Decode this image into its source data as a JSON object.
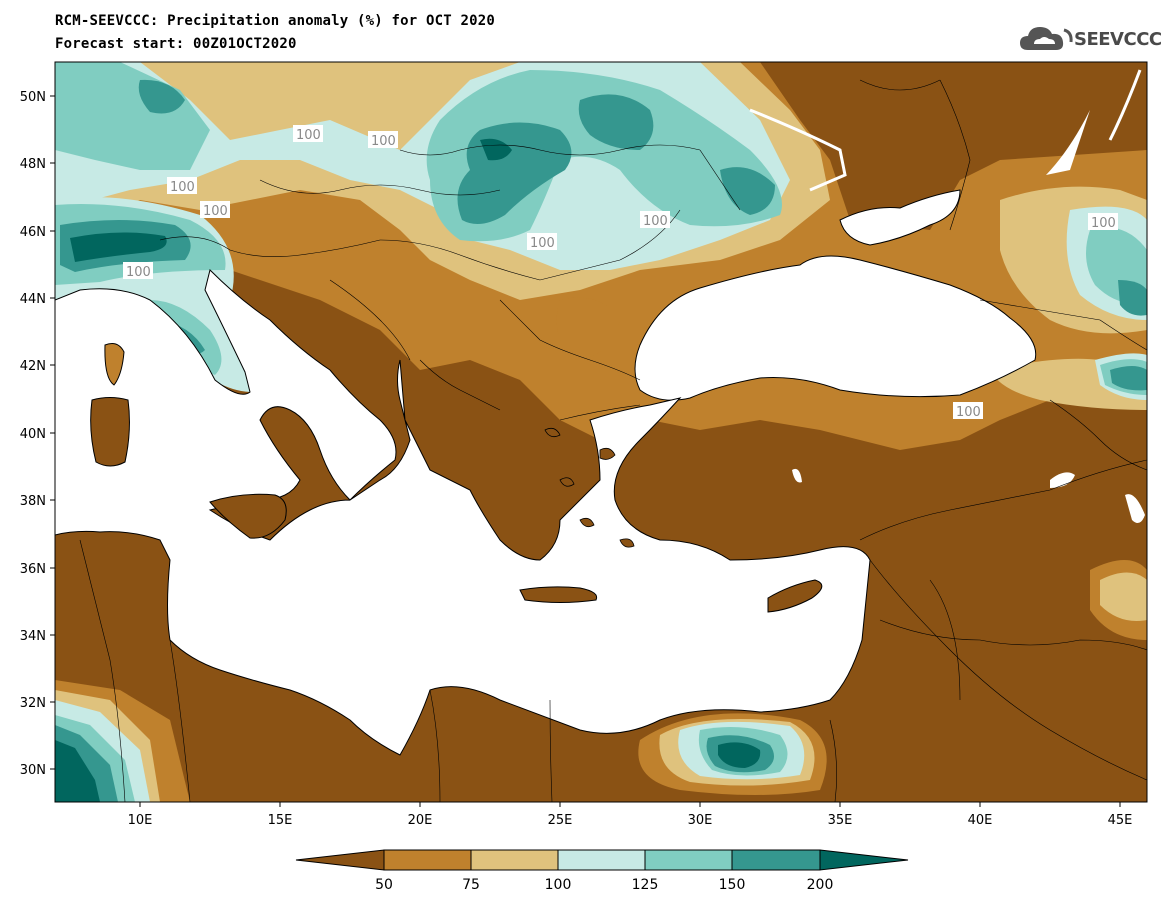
{
  "title": {
    "line1": "RCM-SEEVCCC: Precipitation anomaly (%) for OCT 2020",
    "line2": "Forecast start: 00Z01OCT2020"
  },
  "logo": {
    "text": "SEEVCCC",
    "icon": "cloud-icon"
  },
  "map": {
    "lon_ticks": [
      "10E",
      "15E",
      "20E",
      "25E",
      "30E",
      "35E",
      "40E",
      "45E"
    ],
    "lat_ticks": [
      "30N",
      "32N",
      "34N",
      "36N",
      "38N",
      "40N",
      "42N",
      "44N",
      "46N",
      "48N",
      "50N"
    ],
    "contour_label": "100",
    "colors": {
      "lt50": "#8a5214",
      "c50_75": "#bf812d",
      "c75_100": "#dfc27d",
      "c100_125": "#c7eae5",
      "c125_150": "#80cdc1",
      "c150_200": "#35978f",
      "gt200": "#01665e",
      "sea": "#ffffff"
    }
  },
  "colorbar": {
    "labels": [
      "50",
      "75",
      "100",
      "125",
      "150",
      "200"
    ],
    "colors": [
      "#8a5214",
      "#bf812d",
      "#dfc27d",
      "#c7eae5",
      "#80cdc1",
      "#35978f",
      "#01665e"
    ]
  }
}
